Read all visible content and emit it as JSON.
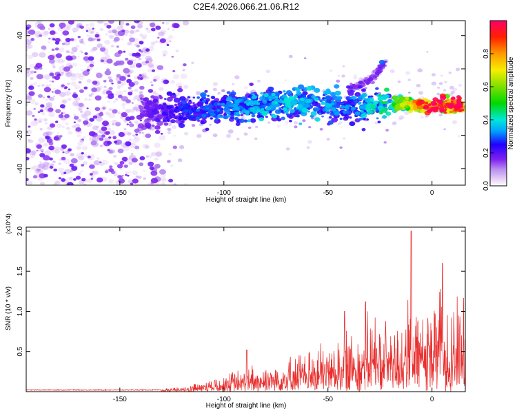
{
  "title": "C2E4.2026.066.21.06.R12",
  "chart_data": [
    {
      "type": "heatmap",
      "xlabel": "Height of straight line (km)",
      "ylabel": "Frequency (Hz)",
      "xlim": [
        -195,
        16
      ],
      "ylim": [
        -50,
        49
      ],
      "xticks": [
        -150,
        -100,
        -50,
        0
      ],
      "xtick_labels": [
        "-150",
        "-100",
        "-50",
        "0"
      ],
      "yticks": [
        40,
        20,
        0,
        -20,
        -40
      ],
      "ytick_labels": [
        "40",
        "20",
        "0",
        "-20",
        "-40"
      ],
      "colorbar": {
        "label": "Normalized spectral amplitude",
        "range": [
          0,
          1
        ],
        "ticks": [
          0.0,
          0.2,
          0.4,
          0.6,
          0.8
        ],
        "tick_labels": [
          "0.0",
          "0.2",
          "0.4",
          "0.6",
          "0.8"
        ]
      },
      "features": {
        "noise_region_x": [
          -195,
          -140
        ],
        "main_trace": {
          "x": [
            -140,
            -120,
            -100,
            -80,
            -60,
            -40,
            -20,
            -10,
            0,
            15
          ],
          "freq": [
            -6,
            -5,
            -4,
            -2,
            -1,
            -3,
            -2,
            -1,
            -2,
            -2
          ],
          "amplitude": [
            0.15,
            0.25,
            0.3,
            0.35,
            0.35,
            0.3,
            0.45,
            0.7,
            0.95,
            0.9
          ]
        },
        "branch_trace": {
          "x": [
            -40,
            -32,
            -26,
            -22
          ],
          "freq": [
            7,
            12,
            18,
            24
          ]
        },
        "faint_points": [
          {
            "x": -15,
            "freq": 35
          },
          {
            "x": -8,
            "freq": 44
          }
        ]
      }
    },
    {
      "type": "line",
      "xlabel": "Height of straight line (km)",
      "ylabel": "SNR (10 * v/v)",
      "y_multiplier": "(x10^4)",
      "xlim": [
        -195,
        16
      ],
      "ylim": [
        0,
        2.05
      ],
      "xticks": [
        -150,
        -100,
        -50,
        0
      ],
      "xtick_labels": [
        "-150",
        "-100",
        "-50",
        "0"
      ],
      "yticks": [
        0.5,
        1.0,
        1.5,
        2.0
      ],
      "ytick_labels": [
        "0.5",
        "1.0",
        "1.5",
        "2.0"
      ],
      "color": "#e8302f",
      "series": [
        {
          "name": "SNR",
          "envelope_x": [
            -195,
            -150,
            -130,
            -120,
            -110,
            -100,
            -90,
            -80,
            -70,
            -60,
            -50,
            -40,
            -30,
            -20,
            -15,
            -10,
            -5,
            0,
            5,
            10,
            15
          ],
          "envelope_y": [
            0.02,
            0.02,
            0.03,
            0.06,
            0.12,
            0.2,
            0.28,
            0.32,
            0.38,
            0.48,
            0.55,
            0.72,
            0.85,
            0.9,
            0.8,
            1.0,
            1.0,
            1.12,
            1.18,
            1.12,
            1.15
          ],
          "spikes": [
            {
              "x": -89,
              "y": 0.52
            },
            {
              "x": -42,
              "y": 1.0
            },
            {
              "x": -32,
              "y": 1.12
            },
            {
              "x": -10,
              "y": 2.0
            },
            {
              "x": 5,
              "y": 1.6
            }
          ]
        }
      ]
    }
  ]
}
